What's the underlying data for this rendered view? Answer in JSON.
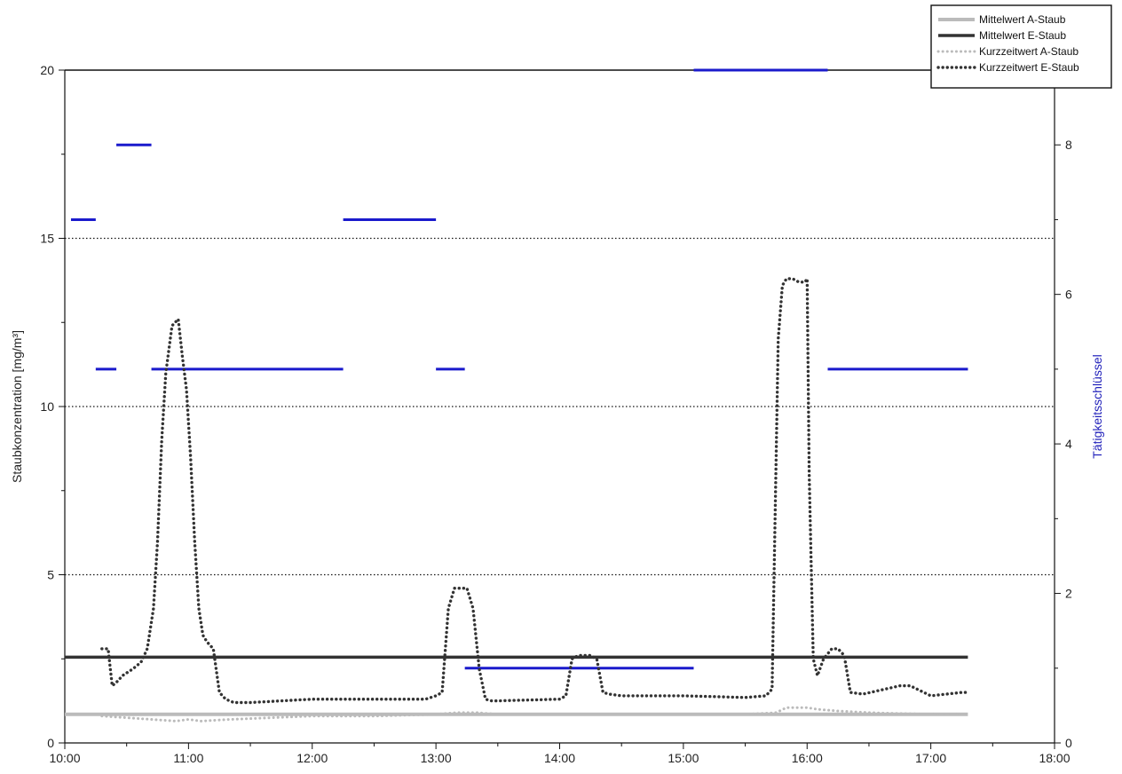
{
  "chart_data": {
    "type": "line",
    "ylabel": "Staubkonzentration [mg/m³]",
    "y2label": "Tätigkeitsschlüssel",
    "xlim": [
      "10:00",
      "18:00"
    ],
    "ylim": [
      0,
      20
    ],
    "y2lim": [
      0,
      9
    ],
    "x_ticks": [
      "10:00",
      "11:00",
      "12:00",
      "13:00",
      "14:00",
      "15:00",
      "16:00",
      "17:00",
      "18:00"
    ],
    "y_ticks": [
      "0",
      "5",
      "10",
      "15",
      "20"
    ],
    "y2_ticks": [
      "0",
      "2",
      "4",
      "6",
      "8"
    ],
    "gridlines_y": [
      5,
      10,
      15,
      20
    ],
    "legend_position": "top-right",
    "colors": {
      "a_staub": "#bbbbbb",
      "e_staub": "#333333",
      "taetigkeit": "#1a1acc",
      "y2label": "#2222bb"
    },
    "series": [
      {
        "name": "Mittelwert A-Staub",
        "style": "solid",
        "color": "#bbbbbb",
        "x": [
          "10:00",
          "17:18"
        ],
        "y": [
          0.85,
          0.85
        ]
      },
      {
        "name": "Mittelwert E-Staub",
        "style": "solid",
        "color": "#333333",
        "x": [
          "10:00",
          "17:18"
        ],
        "y": [
          2.55,
          2.55
        ]
      },
      {
        "name": "Kurzzeitwert A-Staub",
        "style": "dotted",
        "color": "#bbbbbb",
        "x": [
          "10:18",
          "10:30",
          "10:42",
          "10:54",
          "11:00",
          "11:06",
          "11:20",
          "11:40",
          "12:00",
          "12:30",
          "13:00",
          "13:10",
          "13:20",
          "13:30",
          "14:00",
          "14:30",
          "15:00",
          "15:30",
          "15:45",
          "15:50",
          "16:00",
          "16:05",
          "16:15",
          "16:30",
          "17:00",
          "17:18"
        ],
        "y": [
          0.8,
          0.75,
          0.7,
          0.65,
          0.7,
          0.65,
          0.7,
          0.75,
          0.8,
          0.8,
          0.85,
          0.9,
          0.9,
          0.85,
          0.85,
          0.85,
          0.85,
          0.85,
          0.9,
          1.05,
          1.05,
          1.0,
          0.95,
          0.9,
          0.85,
          0.85
        ]
      },
      {
        "name": "Kurzzeitwert E-Staub",
        "style": "dotted",
        "color": "#333333",
        "x": [
          "10:18",
          "10:21",
          "10:23",
          "10:25",
          "10:28",
          "10:33",
          "10:37",
          "10:40",
          "10:43",
          "10:45",
          "10:47",
          "10:49",
          "10:52",
          "10:55",
          "10:57",
          "10:59",
          "11:01",
          "11:03",
          "11:05",
          "11:07",
          "11:09",
          "11:12",
          "11:15",
          "11:18",
          "11:20",
          "11:22",
          "11:30",
          "11:45",
          "12:00",
          "12:30",
          "12:55",
          "13:00",
          "13:03",
          "13:06",
          "13:09",
          "13:12",
          "13:15",
          "13:18",
          "13:21",
          "13:24",
          "13:27",
          "13:30",
          "14:00",
          "14:03",
          "14:06",
          "14:09",
          "14:12",
          "14:15",
          "14:18",
          "14:21",
          "14:24",
          "14:30",
          "15:00",
          "15:30",
          "15:40",
          "15:43",
          "15:46",
          "15:48",
          "15:50",
          "15:53",
          "15:56",
          "15:59",
          "16:00",
          "16:01",
          "16:03",
          "16:05",
          "16:08",
          "16:12",
          "16:15",
          "16:18",
          "16:21",
          "16:27",
          "16:45",
          "16:50",
          "17:00",
          "17:15",
          "17:18"
        ],
        "y": [
          2.8,
          2.8,
          1.7,
          1.8,
          2.0,
          2.2,
          2.4,
          2.8,
          4.0,
          6.0,
          9.0,
          11.0,
          12.4,
          12.6,
          11.5,
          10.5,
          8.5,
          6.0,
          4.0,
          3.2,
          3.0,
          2.8,
          1.5,
          1.3,
          1.25,
          1.2,
          1.2,
          1.25,
          1.3,
          1.3,
          1.3,
          1.4,
          1.5,
          4.0,
          4.6,
          4.6,
          4.6,
          4.0,
          2.2,
          1.3,
          1.25,
          1.25,
          1.3,
          1.4,
          2.5,
          2.6,
          2.6,
          2.6,
          2.5,
          1.5,
          1.45,
          1.4,
          1.4,
          1.35,
          1.4,
          1.6,
          12.0,
          13.6,
          13.8,
          13.8,
          13.7,
          13.7,
          13.8,
          8.0,
          2.5,
          2.0,
          2.5,
          2.8,
          2.8,
          2.6,
          1.5,
          1.45,
          1.7,
          1.7,
          1.4,
          1.5,
          1.5
        ]
      }
    ],
    "taetigkeitsschluessel": [
      {
        "start": "10:03",
        "end": "10:15",
        "value": 7
      },
      {
        "start": "10:15",
        "end": "10:25",
        "value": 5
      },
      {
        "start": "10:25",
        "end": "10:42",
        "value": 8
      },
      {
        "start": "10:42",
        "end": "12:15",
        "value": 5
      },
      {
        "start": "12:15",
        "end": "13:00",
        "value": 7
      },
      {
        "start": "13:00",
        "end": "13:14",
        "value": 5
      },
      {
        "start": "13:14",
        "end": "15:05",
        "value": 1
      },
      {
        "start": "15:05",
        "end": "16:10",
        "value": 9
      },
      {
        "start": "16:10",
        "end": "17:18",
        "value": 5
      }
    ]
  }
}
